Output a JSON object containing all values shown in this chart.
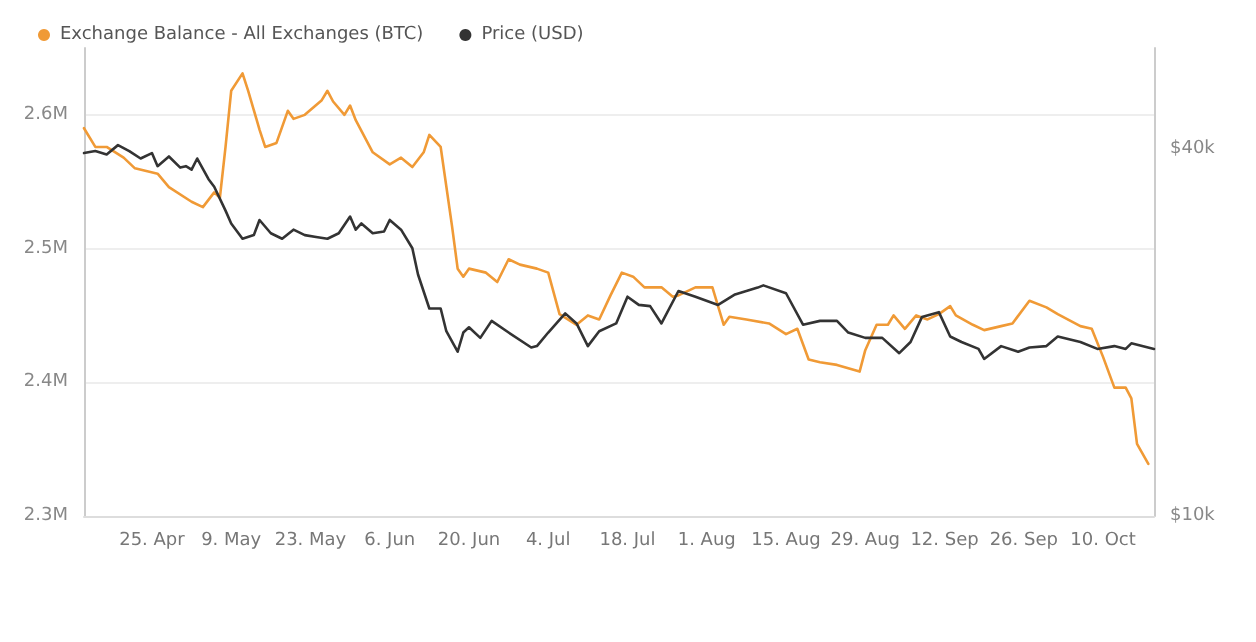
{
  "chart_data": {
    "type": "line",
    "legend": "top left",
    "grid": "y",
    "marker": "none",
    "line_style": "solid",
    "log": "y2",
    "xlim": [
      "--04-13",
      "--10-19"
    ],
    "xticks": [
      {
        "value": "--04-25",
        "label": "25. Apr"
      },
      {
        "value": "--05-09",
        "label": "9. May"
      },
      {
        "value": "--05-23",
        "label": "23. May"
      },
      {
        "value": "--06-06",
        "label": "6. Jun"
      },
      {
        "value": "--06-20",
        "label": "20. Jun"
      },
      {
        "value": "--07-04",
        "label": "4. Jul"
      },
      {
        "value": "--07-18",
        "label": "18. Jul"
      },
      {
        "value": "--08-01",
        "label": "1. Aug"
      },
      {
        "value": "--08-15",
        "label": "15. Aug"
      },
      {
        "value": "--08-29",
        "label": "29. Aug"
      },
      {
        "value": "--09-12",
        "label": "12. Sep"
      },
      {
        "value": "--09-26",
        "label": "26. Sep"
      },
      {
        "value": "--10-10",
        "label": "10. Oct"
      }
    ],
    "ylim": [
      2.3,
      2.65
    ],
    "yticks": [
      {
        "value": 2.3,
        "label": "2.3M"
      },
      {
        "value": 2.4,
        "label": "2.4M"
      },
      {
        "value": 2.5,
        "label": "2.5M"
      },
      {
        "value": 2.6,
        "label": "2.6M"
      }
    ],
    "y2lim": [
      10000,
      58600
    ],
    "y2ticks": [
      {
        "value": 10000,
        "label": "$10k"
      },
      {
        "value": 40000,
        "label": "$40k"
      }
    ],
    "series": [
      {
        "name": "Exchange Balance - All Exchanges (BTC)",
        "color": "#f09a36",
        "x": [
          "--04-13",
          "--04-15",
          "--04-17",
          "--04-20",
          "--04-22",
          "--04-26",
          "--04-28",
          "--05-02",
          "--05-04",
          "--05-06",
          "--05-07",
          "--05-08",
          "--05-09",
          "--05-11",
          "--05-12",
          "--05-14",
          "--05-15",
          "--05-17",
          "--05-19",
          "--05-20",
          "--05-22",
          "--05-25",
          "--05-26",
          "--05-27",
          "--05-29",
          "--05-30",
          "--05-31",
          "--06-03",
          "--06-06",
          "--06-08",
          "--06-10",
          "--06-12",
          "--06-13",
          "--06-15",
          "--06-17",
          "--06-18",
          "--06-19",
          "--06-20",
          "--06-23",
          "--06-25",
          "--06-27",
          "--06-29",
          "--07-02",
          "--07-04",
          "--07-06",
          "--07-09",
          "--07-11",
          "--07-13",
          "--07-15",
          "--07-17",
          "--07-19",
          "--07-21",
          "--07-24",
          "--07-26",
          "--07-27",
          "--07-30",
          "--08-02",
          "--08-04",
          "--08-05",
          "--08-08",
          "--08-12",
          "--08-15",
          "--08-17",
          "--08-19",
          "--08-21",
          "--08-24",
          "--08-28",
          "--08-29",
          "--08-31",
          "--09-02",
          "--09-03",
          "--09-05",
          "--09-07",
          "--09-09",
          "--09-11",
          "--09-13",
          "--09-14",
          "--09-17",
          "--09-19",
          "--09-22",
          "--09-24",
          "--09-27",
          "--09-30",
          "--10-02",
          "--10-06",
          "--10-08",
          "--10-10",
          "--10-12",
          "--10-14",
          "--10-15",
          "--10-16",
          "--10-18"
        ],
        "values": [
          2.59,
          2.576,
          2.576,
          2.568,
          2.56,
          2.556,
          2.546,
          2.535,
          2.531,
          2.542,
          2.538,
          2.576,
          2.618,
          2.631,
          2.618,
          2.589,
          2.576,
          2.579,
          2.603,
          2.597,
          2.6,
          2.611,
          2.618,
          2.61,
          2.6,
          2.607,
          2.596,
          2.572,
          2.563,
          2.568,
          2.561,
          2.572,
          2.585,
          2.576,
          2.517,
          2.485,
          2.479,
          2.485,
          2.482,
          2.475,
          2.492,
          2.488,
          2.485,
          2.482,
          2.451,
          2.443,
          2.45,
          2.447,
          2.465,
          2.482,
          2.479,
          2.471,
          2.471,
          2.464,
          2.465,
          2.471,
          2.471,
          2.443,
          2.449,
          2.447,
          2.444,
          2.436,
          2.44,
          2.417,
          2.415,
          2.413,
          2.408,
          2.424,
          2.443,
          2.443,
          2.45,
          2.44,
          2.45,
          2.447,
          2.451,
          2.457,
          2.45,
          2.443,
          2.439,
          2.442,
          2.444,
          2.461,
          2.456,
          2.451,
          2.442,
          2.44,
          2.419,
          2.396,
          2.396,
          2.388,
          2.354,
          2.339
        ]
      },
      {
        "name": "Price (USD)",
        "color": "#333333",
        "axis": "y2",
        "x": [
          "--04-13",
          "--04-15",
          "--04-17",
          "--04-19",
          "--04-21",
          "--04-23",
          "--04-25",
          "--04-26",
          "--04-28",
          "--04-30",
          "--05-01",
          "--05-02",
          "--05-03",
          "--05-05",
          "--05-06",
          "--05-08",
          "--05-09",
          "--05-11",
          "--05-13",
          "--05-14",
          "--05-16",
          "--05-18",
          "--05-20",
          "--05-22",
          "--05-24",
          "--05-26",
          "--05-28",
          "--05-30",
          "--05-31",
          "--06-01",
          "--06-03",
          "--06-05",
          "--06-06",
          "--06-08",
          "--06-10",
          "--06-11",
          "--06-13",
          "--06-15",
          "--06-16",
          "--06-18",
          "--06-19",
          "--06-20",
          "--06-22",
          "--06-24",
          "--06-27",
          "--07-01",
          "--07-02",
          "--07-04",
          "--07-07",
          "--07-09",
          "--07-11",
          "--07-13",
          "--07-16",
          "--07-18",
          "--07-20",
          "--07-22",
          "--07-24",
          "--07-27",
          "--07-30",
          "--08-03",
          "--08-06",
          "--08-10",
          "--08-11",
          "--08-15",
          "--08-18",
          "--08-21",
          "--08-24",
          "--08-26",
          "--08-29",
          "--09-01",
          "--09-04",
          "--09-06",
          "--09-08",
          "--09-11",
          "--09-13",
          "--09-15",
          "--09-18",
          "--09-19",
          "--09-22",
          "--09-25",
          "--09-27",
          "--09-30",
          "--10-02",
          "--10-06",
          "--10-09",
          "--10-12",
          "--10-14",
          "--10-15",
          "--10-19"
        ],
        "values": [
          39400,
          39700,
          39200,
          40600,
          39700,
          38600,
          39400,
          37500,
          38900,
          37300,
          37500,
          37000,
          38600,
          35700,
          34700,
          31700,
          30200,
          28500,
          28900,
          30600,
          29100,
          28500,
          29500,
          28900,
          28700,
          28500,
          29100,
          31000,
          29500,
          30200,
          29100,
          29300,
          30600,
          29500,
          27500,
          24900,
          21900,
          21900,
          20100,
          18600,
          20000,
          20400,
          19600,
          20900,
          20000,
          18900,
          19000,
          20000,
          21500,
          20700,
          19000,
          20100,
          20700,
          22900,
          22200,
          22100,
          20700,
          23400,
          22900,
          22200,
          23100,
          23700,
          23900,
          23200,
          20600,
          20900,
          20900,
          20000,
          19600,
          19600,
          18500,
          19300,
          21200,
          21600,
          19700,
          19300,
          18800,
          18100,
          19000,
          18600,
          18900,
          19000,
          19700,
          19300,
          18800,
          19000,
          18800,
          19200,
          18800
        ]
      }
    ]
  }
}
